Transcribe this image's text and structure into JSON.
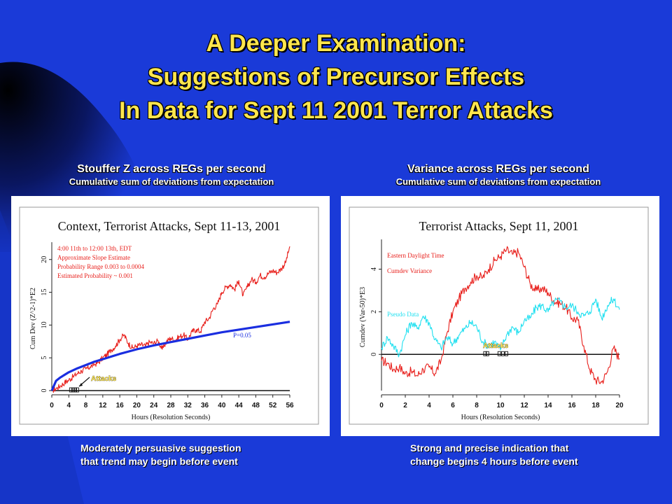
{
  "slide": {
    "title_lines": [
      "A Deeper Examination:",
      "Suggestions of Precursor Effects",
      "In Data for Sept 11 2001 Terror Attacks"
    ],
    "background_color": "#1a3ad8",
    "title_color": "#ffe64d"
  },
  "left": {
    "heading": "Stouffer Z across REGs per second",
    "subheading": "Cumulative sum of deviations from expectation",
    "note_lines": [
      "Moderately persuasive suggestion",
      "that trend may begin before event"
    ]
  },
  "right": {
    "heading": "Variance across REGs per second",
    "subheading": "Cumulative sum of deviations from expectation",
    "note_lines": [
      "Strong and precise indication that",
      "change begins 4 hours before event"
    ]
  },
  "chart_data": [
    {
      "type": "line",
      "title": "Context, Terrorist Attacks, Sept 11-13, 2001",
      "xlabel": "Hours (Resolution Seconds)",
      "ylabel": "Cum Dev (Z^2-1)*E2",
      "xlim": [
        0,
        56
      ],
      "ylim": [
        0,
        22
      ],
      "x_ticks": [
        "0",
        "4",
        "8",
        "12",
        "16",
        "20",
        "24",
        "28",
        "32",
        "36",
        "40",
        "44",
        "48",
        "52",
        "56"
      ],
      "y_ticks": [
        "0",
        "5",
        "10",
        "15",
        "20"
      ],
      "annotations": [
        "4:00 11th to 12:00 13th, EDT",
        "Approximate Slope Estimate",
        "Probability Range 0.003 to 0.0004",
        "Estimated Probability ~ 0.001"
      ],
      "attacks_label": "Attacks",
      "attack_marker_x": [
        4.5,
        5.0,
        5.5,
        6.0
      ],
      "envelope_label": "P=0.05",
      "series": [
        {
          "color": "#e8201c",
          "x": [
            0,
            1,
            2,
            3,
            4,
            5,
            6,
            7,
            8,
            9,
            10,
            11,
            12,
            13,
            14,
            15,
            16,
            17,
            18,
            19,
            20,
            21,
            22,
            23,
            24,
            25,
            26,
            27,
            28,
            29,
            30,
            31,
            32,
            33,
            34,
            35,
            36,
            37,
            38,
            39,
            40,
            41,
            42,
            43,
            44,
            45,
            46,
            47,
            48,
            49,
            50,
            51,
            52,
            53,
            54,
            55,
            56
          ],
          "values": [
            0,
            0.3,
            0.7,
            1.2,
            1.6,
            2.1,
            2.6,
            3.0,
            3.3,
            3.6,
            4.0,
            4.3,
            5.0,
            5.5,
            6.2,
            6.8,
            7.8,
            8.5,
            7.2,
            6.5,
            6.8,
            7.0,
            6.8,
            7.4,
            7.2,
            7.6,
            6.3,
            7.5,
            8.0,
            7.7,
            8.2,
            8.5,
            7.8,
            9.0,
            9.3,
            9.0,
            10.5,
            11.0,
            12.5,
            13.2,
            15.0,
            15.8,
            16.2,
            15.4,
            16.8,
            14.5,
            15.8,
            17.0,
            16.5,
            17.6,
            17.3,
            17.9,
            18.3,
            18.0,
            18.6,
            19.5,
            22.0
          ]
        },
        {
          "color": "#1a2ee0",
          "x": [
            0,
            1,
            2,
            3,
            4,
            6,
            8,
            10,
            12,
            16,
            20,
            24,
            28,
            32,
            36,
            40,
            44,
            48,
            52,
            56
          ],
          "values": [
            0,
            1.5,
            2.0,
            2.4,
            2.8,
            3.4,
            3.9,
            4.4,
            4.8,
            5.6,
            6.3,
            6.9,
            7.4,
            7.9,
            8.4,
            8.9,
            9.3,
            9.7,
            10.1,
            10.5
          ]
        }
      ]
    },
    {
      "type": "line",
      "title": "Terrorist Attacks, Sept 11, 2001",
      "xlabel": "Hours (Resolution Seconds)",
      "ylabel": "Cumdev (Var-50)*E3",
      "xlim": [
        0,
        20
      ],
      "ylim": [
        -1.7,
        5.2
      ],
      "x_ticks": [
        "0",
        "2",
        "4",
        "6",
        "8",
        "10",
        "12",
        "14",
        "16",
        "18",
        "20"
      ],
      "y_ticks": [
        "0",
        "2",
        "4"
      ],
      "legend": [
        "Eastern Daylight Time",
        "Cumdev Variance",
        "Pseudo Data"
      ],
      "attacks_label": "Attacks",
      "attack_marker_x": [
        8.7,
        8.9,
        9.9,
        10.2,
        10.5
      ],
      "series": [
        {
          "name": "Cumdev Variance",
          "color": "#e8201c",
          "x": [
            0,
            0.5,
            1,
            1.5,
            2,
            2.5,
            3,
            3.5,
            4,
            4.5,
            5,
            5.5,
            6,
            6.5,
            7,
            7.5,
            8,
            8.5,
            9,
            9.5,
            10,
            10.5,
            11,
            11.5,
            12,
            12.5,
            13,
            13.5,
            14,
            14.5,
            15,
            15.5,
            16,
            16.5,
            17,
            17.5,
            18,
            18.5,
            19,
            19.5,
            20
          ],
          "values": [
            -0.3,
            -0.4,
            -0.7,
            -0.6,
            -0.9,
            -0.8,
            -1.0,
            -0.7,
            -0.6,
            -0.9,
            -0.3,
            1.0,
            2.0,
            2.6,
            3.1,
            3.4,
            3.7,
            3.6,
            4.0,
            4.4,
            4.6,
            4.9,
            4.7,
            4.8,
            4.1,
            3.3,
            3.0,
            3.1,
            2.9,
            2.5,
            2.4,
            2.2,
            1.7,
            1.6,
            0.4,
            -0.7,
            -1.2,
            -1.3,
            -0.8,
            0.3,
            -0.2
          ]
        },
        {
          "name": "Pseudo Data",
          "color": "#21e0f0",
          "x": [
            0,
            0.5,
            1,
            1.5,
            2,
            2.5,
            3,
            3.5,
            4,
            4.5,
            5,
            5.5,
            6,
            6.5,
            7,
            7.5,
            8,
            8.5,
            9,
            9.5,
            10,
            10.5,
            11,
            11.5,
            12,
            12.5,
            13,
            13.5,
            14,
            14.5,
            15,
            15.5,
            16,
            16.5,
            17,
            17.5,
            18,
            18.5,
            19,
            19.5,
            20
          ],
          "values": [
            0.3,
            0.8,
            0.4,
            0.0,
            0.9,
            1.5,
            1.2,
            1.8,
            1.5,
            0.7,
            0.3,
            0.8,
            0.5,
            0.9,
            1.2,
            1.5,
            1.3,
            0.6,
            0.4,
            0.6,
            0.2,
            0.9,
            1.3,
            1.0,
            1.6,
            1.7,
            2.2,
            2.3,
            2.0,
            2.5,
            2.5,
            2.2,
            2.3,
            2.0,
            1.8,
            2.0,
            2.6,
            1.7,
            2.3,
            2.6,
            2.1
          ]
        }
      ]
    }
  ]
}
